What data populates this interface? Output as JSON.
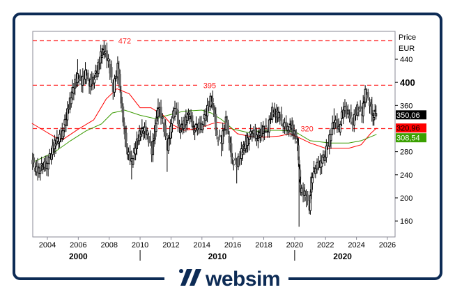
{
  "brand": {
    "name": "websim",
    "frame_color": "#0d2b55"
  },
  "chart_data": {
    "type": "candlestick",
    "title": "",
    "ylabel": "Price",
    "yunit": "EUR",
    "xlim": [
      2003.0,
      2026.4
    ],
    "ylim": [
      140,
      480
    ],
    "grid": false,
    "x_ticks": [
      2004,
      2006,
      2008,
      2010,
      2012,
      2014,
      2016,
      2018,
      2020,
      2022,
      2024,
      2026
    ],
    "decades": [
      {
        "label": "2000",
        "at": 2006.0
      },
      {
        "label": "2010",
        "at": 2015.0
      },
      {
        "label": "2020",
        "at": 2023.1
      }
    ],
    "decade_separators": [
      2010,
      2020
    ],
    "y_ticks": [
      160,
      200,
      240,
      280,
      360,
      400,
      440
    ],
    "y_tick_major": 400,
    "levels": [
      {
        "value": 472,
        "label": "472",
        "at": 2009.0
      },
      {
        "value": 395,
        "label": "395",
        "at": 2014.5
      },
      {
        "value": 320,
        "label": "320",
        "at": 2020.8
      }
    ],
    "colors": {
      "levels": "#ff2020",
      "candle": "#000000",
      "candle_down": "#666666",
      "ma_fast": "#ff0000",
      "ma_slow": "#3a9a00"
    },
    "price": [
      {
        "t": 2003.0,
        "c": 270,
        "l": 225
      },
      {
        "t": 2003.25,
        "c": 250
      },
      {
        "t": 2003.5,
        "c": 247,
        "l": 235
      },
      {
        "t": 2003.75,
        "c": 258
      },
      {
        "t": 2004.0,
        "c": 255
      },
      {
        "t": 2004.3,
        "c": 280
      },
      {
        "t": 2004.5,
        "c": 295
      },
      {
        "t": 2004.75,
        "c": 302
      },
      {
        "t": 2005.0,
        "c": 311
      },
      {
        "t": 2005.25,
        "c": 340
      },
      {
        "t": 2005.5,
        "c": 368
      },
      {
        "t": 2005.75,
        "c": 395
      },
      {
        "t": 2006.0,
        "c": 410,
        "h": 440
      },
      {
        "t": 2006.25,
        "c": 400
      },
      {
        "t": 2006.5,
        "c": 416,
        "h": 435
      },
      {
        "t": 2006.75,
        "c": 398
      },
      {
        "t": 2007.0,
        "c": 404
      },
      {
        "t": 2007.25,
        "c": 420
      },
      {
        "t": 2007.5,
        "c": 448
      },
      {
        "t": 2007.7,
        "c": 455,
        "h": 472
      },
      {
        "t": 2008.0,
        "c": 436
      },
      {
        "t": 2008.3,
        "c": 388,
        "l": 370
      },
      {
        "t": 2008.6,
        "c": 428,
        "h": 445
      },
      {
        "t": 2008.8,
        "c": 368
      },
      {
        "t": 2009.0,
        "c": 319
      },
      {
        "t": 2009.2,
        "c": 280
      },
      {
        "t": 2009.5,
        "c": 263,
        "l": 232
      },
      {
        "t": 2009.75,
        "c": 290
      },
      {
        "t": 2010.0,
        "c": 311
      },
      {
        "t": 2010.25,
        "c": 320
      },
      {
        "t": 2010.5,
        "c": 311
      },
      {
        "t": 2010.8,
        "c": 280,
        "l": 262
      },
      {
        "t": 2011.0,
        "c": 320
      },
      {
        "t": 2011.2,
        "c": 359,
        "h": 372
      },
      {
        "t": 2011.5,
        "c": 335
      },
      {
        "t": 2011.8,
        "c": 287,
        "l": 245
      },
      {
        "t": 2012.0,
        "c": 319
      },
      {
        "t": 2012.3,
        "c": 359,
        "h": 368
      },
      {
        "t": 2012.6,
        "c": 319
      },
      {
        "t": 2012.8,
        "c": 325
      },
      {
        "t": 2013.0,
        "c": 335
      },
      {
        "t": 2013.25,
        "c": 345
      },
      {
        "t": 2013.5,
        "c": 319
      },
      {
        "t": 2013.75,
        "c": 325
      },
      {
        "t": 2014.0,
        "c": 323
      },
      {
        "t": 2014.3,
        "c": 347
      },
      {
        "t": 2014.6,
        "c": 371,
        "h": 382
      },
      {
        "t": 2014.8,
        "c": 356
      },
      {
        "t": 2015.0,
        "c": 304
      },
      {
        "t": 2015.3,
        "c": 299,
        "l": 272
      },
      {
        "t": 2015.6,
        "c": 335
      },
      {
        "t": 2015.8,
        "c": 300
      },
      {
        "t": 2016.0,
        "c": 263
      },
      {
        "t": 2016.3,
        "c": 259,
        "l": 225
      },
      {
        "t": 2016.6,
        "c": 280
      },
      {
        "t": 2016.8,
        "c": 290
      },
      {
        "t": 2017.0,
        "c": 299
      },
      {
        "t": 2017.3,
        "c": 316
      },
      {
        "t": 2017.6,
        "c": 304
      },
      {
        "t": 2017.8,
        "c": 312
      },
      {
        "t": 2018.0,
        "c": 319
      },
      {
        "t": 2018.3,
        "c": 319
      },
      {
        "t": 2018.6,
        "c": 352,
        "h": 365
      },
      {
        "t": 2018.8,
        "c": 345
      },
      {
        "t": 2019.0,
        "c": 343
      },
      {
        "t": 2019.3,
        "c": 328
      },
      {
        "t": 2019.6,
        "c": 319
      },
      {
        "t": 2019.8,
        "c": 325
      },
      {
        "t": 2020.0,
        "c": 311
      },
      {
        "t": 2020.2,
        "c": 299
      },
      {
        "t": 2020.3,
        "c": 255,
        "l": 150
      },
      {
        "t": 2020.4,
        "c": 214
      },
      {
        "t": 2020.7,
        "c": 207
      },
      {
        "t": 2021.0,
        "c": 183,
        "l": 172
      },
      {
        "t": 2021.1,
        "c": 231
      },
      {
        "t": 2021.4,
        "c": 255
      },
      {
        "t": 2021.7,
        "c": 259
      },
      {
        "t": 2022.0,
        "c": 275
      },
      {
        "t": 2022.3,
        "c": 304
      },
      {
        "t": 2022.6,
        "c": 335,
        "h": 355
      },
      {
        "t": 2022.9,
        "c": 319
      },
      {
        "t": 2023.2,
        "c": 356,
        "h": 366
      },
      {
        "t": 2023.5,
        "c": 347
      },
      {
        "t": 2023.8,
        "c": 331
      },
      {
        "t": 2024.1,
        "c": 356
      },
      {
        "t": 2024.4,
        "c": 347
      },
      {
        "t": 2024.6,
        "c": 383,
        "h": 395
      },
      {
        "t": 2024.9,
        "c": 364
      },
      {
        "t": 2025.1,
        "c": 340,
        "l": 325
      },
      {
        "t": 2025.3,
        "c": 350.06
      }
    ],
    "series": [
      {
        "values": [
          [
            2003.0,
            329
          ],
          [
            2004.5,
            305
          ],
          [
            2005.0,
            301
          ],
          [
            2006.0,
            319
          ],
          [
            2007.0,
            335
          ],
          [
            2007.8,
            371
          ],
          [
            2008.5,
            389
          ],
          [
            2009.3,
            380
          ],
          [
            2010.0,
            356
          ],
          [
            2010.7,
            356
          ],
          [
            2011.5,
            343
          ],
          [
            2012.0,
            328
          ],
          [
            2012.8,
            317
          ],
          [
            2013.5,
            319
          ],
          [
            2014.3,
            325
          ],
          [
            2014.6,
            328
          ],
          [
            2015.0,
            331
          ],
          [
            2015.6,
            328
          ],
          [
            2016.3,
            311
          ],
          [
            2017.0,
            307
          ],
          [
            2018.0,
            305
          ],
          [
            2019.0,
            307
          ],
          [
            2019.7,
            311
          ],
          [
            2020.3,
            304
          ],
          [
            2021.0,
            295
          ],
          [
            2022.0,
            286
          ],
          [
            2022.6,
            286
          ],
          [
            2023.5,
            286
          ],
          [
            2024.3,
            292
          ],
          [
            2024.9,
            311
          ],
          [
            2025.3,
            321
          ]
        ]
      },
      {
        "values": [
          [
            2003.0,
            261
          ],
          [
            2004.5,
            280
          ],
          [
            2005.5,
            299
          ],
          [
            2006.5,
            316
          ],
          [
            2007.5,
            328
          ],
          [
            2008.2,
            347
          ],
          [
            2009.0,
            352
          ],
          [
            2010.0,
            343
          ],
          [
            2011.0,
            337
          ],
          [
            2011.8,
            343
          ],
          [
            2012.8,
            350
          ],
          [
            2014.0,
            352
          ],
          [
            2014.6,
            347
          ],
          [
            2015.3,
            335
          ],
          [
            2016.0,
            319
          ],
          [
            2017.0,
            313
          ],
          [
            2018.0,
            317
          ],
          [
            2019.0,
            317
          ],
          [
            2020.0,
            315
          ],
          [
            2021.0,
            299
          ],
          [
            2022.3,
            295
          ],
          [
            2023.5,
            295
          ],
          [
            2024.3,
            299
          ],
          [
            2025.3,
            310
          ]
        ]
      }
    ],
    "last_values": [
      {
        "label": "350,06",
        "value": 350.06,
        "bg": "#000000",
        "fg": "#ffffff"
      },
      {
        "label": "320,96",
        "value": 320.96,
        "bg": "#ff0000",
        "fg": "#000000"
      },
      {
        "label": "308,54",
        "value": 308.54,
        "bg": "#3aa000",
        "fg": "#ffffff"
      }
    ]
  }
}
